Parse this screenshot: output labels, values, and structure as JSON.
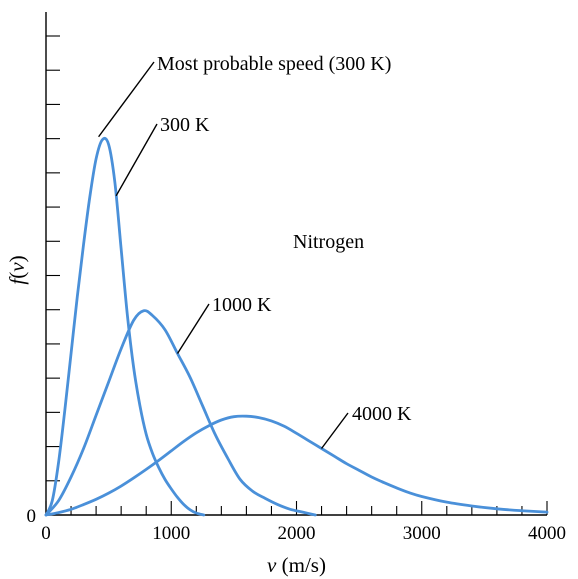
{
  "chart_data": {
    "type": "line",
    "xlabel_var": "v",
    "xlabel_unit": "(m/s)",
    "ylabel_func": "f",
    "ylabel_var": "v",
    "xlim": [
      0,
      4000
    ],
    "ylim": [
      0,
      1
    ],
    "x_ticks": [
      0,
      1000,
      2000,
      3000,
      4000
    ],
    "x_tick_labels": [
      "0",
      "1000",
      "2000",
      "3000",
      "4000"
    ],
    "x_minor_step": 200,
    "y_origin_label": "0",
    "y_minor_count": 14,
    "grid": false,
    "gas_label": "Nitrogen",
    "curve_color": "#4a90d9",
    "series": [
      {
        "name": "300 K",
        "peak_v": 420,
        "peak_f": 0.79,
        "points": [
          [
            0,
            0
          ],
          [
            50,
            0.03
          ],
          [
            100,
            0.11
          ],
          [
            150,
            0.22
          ],
          [
            200,
            0.34
          ],
          [
            250,
            0.46
          ],
          [
            300,
            0.57
          ],
          [
            350,
            0.67
          ],
          [
            400,
            0.75
          ],
          [
            450,
            0.79
          ],
          [
            500,
            0.78
          ],
          [
            550,
            0.7
          ],
          [
            600,
            0.56
          ],
          [
            650,
            0.42
          ],
          [
            700,
            0.31
          ],
          [
            750,
            0.23
          ],
          [
            800,
            0.17
          ],
          [
            850,
            0.13
          ],
          [
            900,
            0.1
          ],
          [
            950,
            0.075
          ],
          [
            1000,
            0.055
          ],
          [
            1050,
            0.037
          ],
          [
            1100,
            0.022
          ],
          [
            1150,
            0.011
          ],
          [
            1200,
            0.004
          ],
          [
            1260,
            0
          ]
        ]
      },
      {
        "name": "1000 K",
        "peak_v": 780,
        "peak_f": 0.43,
        "points": [
          [
            0,
            0
          ],
          [
            100,
            0.03
          ],
          [
            200,
            0.08
          ],
          [
            300,
            0.14
          ],
          [
            400,
            0.21
          ],
          [
            500,
            0.28
          ],
          [
            600,
            0.35
          ],
          [
            700,
            0.41
          ],
          [
            780,
            0.43
          ],
          [
            850,
            0.42
          ],
          [
            950,
            0.39
          ],
          [
            1050,
            0.34
          ],
          [
            1150,
            0.29
          ],
          [
            1250,
            0.23
          ],
          [
            1350,
            0.17
          ],
          [
            1450,
            0.12
          ],
          [
            1550,
            0.075
          ],
          [
            1650,
            0.05
          ],
          [
            1750,
            0.035
          ],
          [
            1850,
            0.022
          ],
          [
            1950,
            0.012
          ],
          [
            2050,
            0.006
          ],
          [
            2150,
            0
          ]
        ]
      },
      {
        "name": "4000 K",
        "peak_v": 1550,
        "peak_f": 0.21,
        "points": [
          [
            0,
            0
          ],
          [
            100,
            0.005
          ],
          [
            200,
            0.012
          ],
          [
            300,
            0.022
          ],
          [
            400,
            0.033
          ],
          [
            500,
            0.046
          ],
          [
            600,
            0.061
          ],
          [
            700,
            0.078
          ],
          [
            800,
            0.096
          ],
          [
            900,
            0.115
          ],
          [
            1000,
            0.135
          ],
          [
            1100,
            0.155
          ],
          [
            1200,
            0.173
          ],
          [
            1300,
            0.188
          ],
          [
            1400,
            0.2
          ],
          [
            1500,
            0.207
          ],
          [
            1600,
            0.208
          ],
          [
            1700,
            0.205
          ],
          [
            1800,
            0.198
          ],
          [
            1900,
            0.187
          ],
          [
            2000,
            0.172
          ],
          [
            2100,
            0.156
          ],
          [
            2200,
            0.14
          ],
          [
            2300,
            0.124
          ],
          [
            2400,
            0.108
          ],
          [
            2500,
            0.094
          ],
          [
            2600,
            0.08
          ],
          [
            2700,
            0.068
          ],
          [
            2800,
            0.057
          ],
          [
            2900,
            0.047
          ],
          [
            3000,
            0.039
          ],
          [
            3200,
            0.027
          ],
          [
            3400,
            0.019
          ],
          [
            3600,
            0.013
          ],
          [
            3800,
            0.009
          ],
          [
            4000,
            0.006
          ]
        ]
      }
    ],
    "annotations": [
      {
        "text": "Most probable speed (300 K)",
        "points_to": "300 K peak"
      },
      {
        "text": "300 K",
        "points_to": "300 K curve"
      },
      {
        "text": "1000 K",
        "points_to": "1000 K curve"
      },
      {
        "text": "4000 K",
        "points_to": "4000 K curve"
      }
    ]
  }
}
